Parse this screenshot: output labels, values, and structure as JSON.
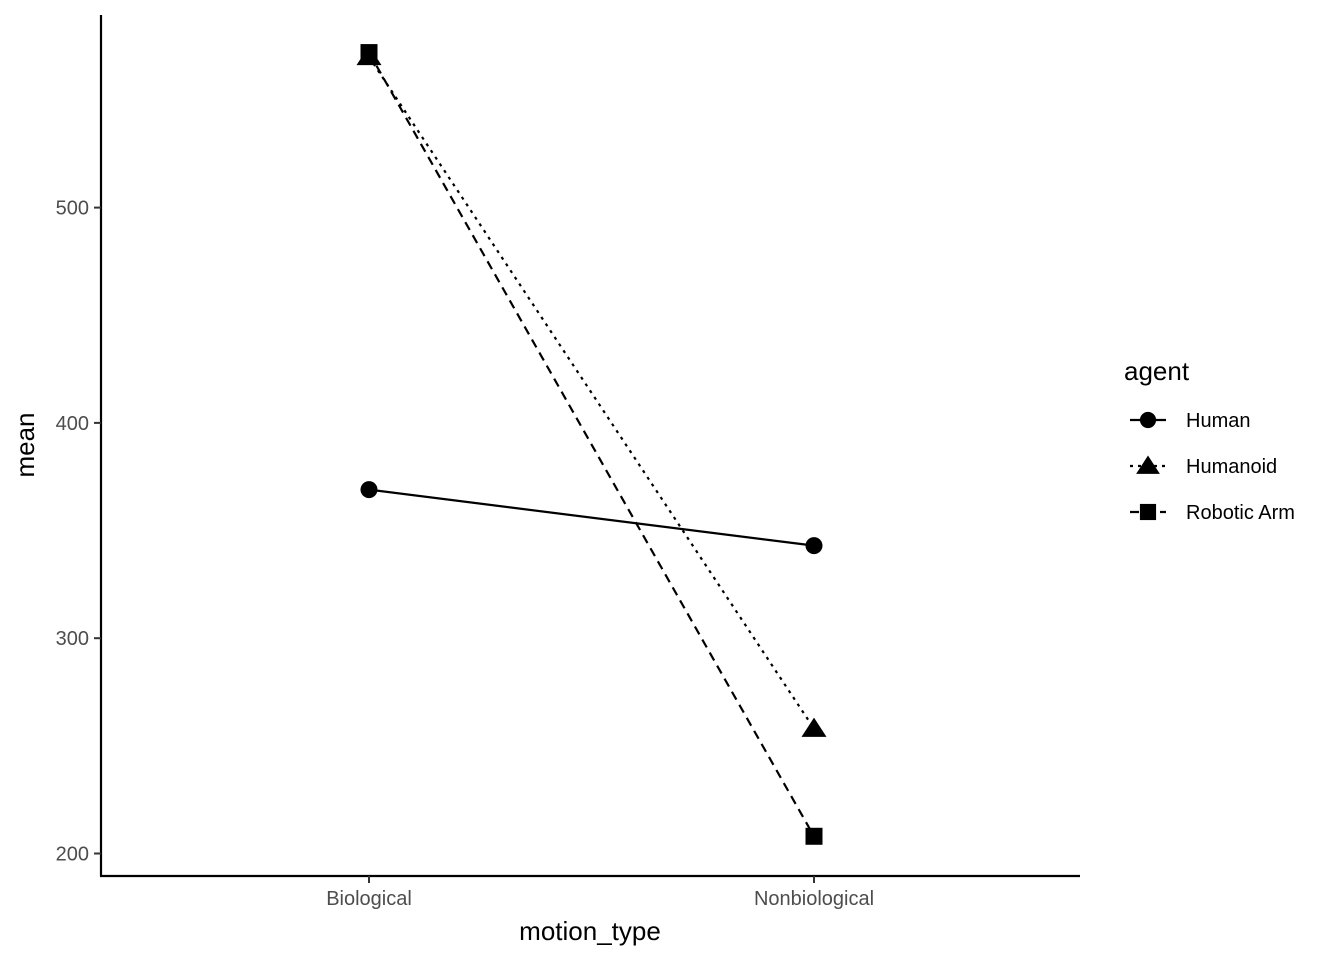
{
  "chart_data": {
    "type": "line",
    "xlabel": "motion_type",
    "ylabel": "mean",
    "categories": [
      "Biological",
      "Nonbiological"
    ],
    "y_ticks": [
      200,
      300,
      400,
      500
    ],
    "ylim": [
      195,
      575
    ],
    "grid": false,
    "legend": {
      "title": "agent",
      "position": "right"
    },
    "series": [
      {
        "name": "Human",
        "values": [
          369,
          343
        ],
        "marker": "circle",
        "line": "solid"
      },
      {
        "name": "Humanoid",
        "values": [
          570,
          258
        ],
        "marker": "triangle",
        "line": "dotted"
      },
      {
        "name": "Robotic Arm",
        "values": [
          572,
          208
        ],
        "marker": "square",
        "line": "dashed"
      }
    ]
  }
}
